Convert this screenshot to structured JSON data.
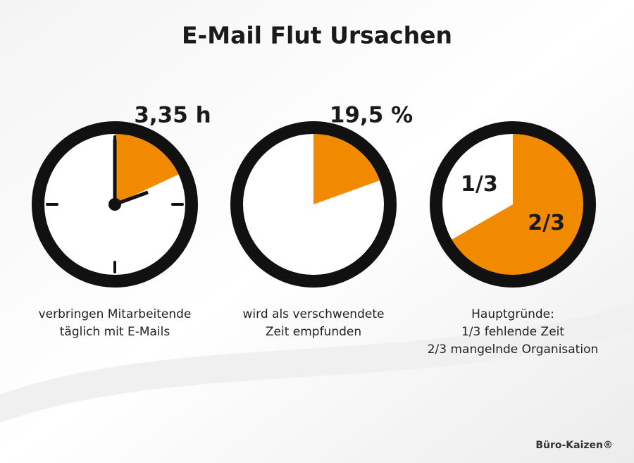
{
  "title": "E-Mail Flut Ursachen",
  "panels": [
    {
      "heading": "3,35 h",
      "share": 18,
      "color": "#f28a00",
      "caption": [
        "verbringen Mitarbeitende",
        "täglich mit E-Mails"
      ]
    },
    {
      "heading": {
        "value": 19.5,
        "label": "19,5 %"
      },
      "color": "#f28a00",
      "caption": [
        "wird als verschwendete",
        "Zeit empfunden"
      ]
    },
    {
      "segments": [
        {
          "value": 33.3,
          "label": "1/3",
          "color": "#ffffff"
        },
        {
          "value": 66.7,
          "label": "2/3",
          "color": "#f28a00"
        }
      ],
      "caption": [
        "Hauptgründe:",
        "1/3 fehlende Zeit",
        "2/3 mangelnde Organisation"
      ]
    }
  ],
  "footer": "Büro-Kaizen®"
}
